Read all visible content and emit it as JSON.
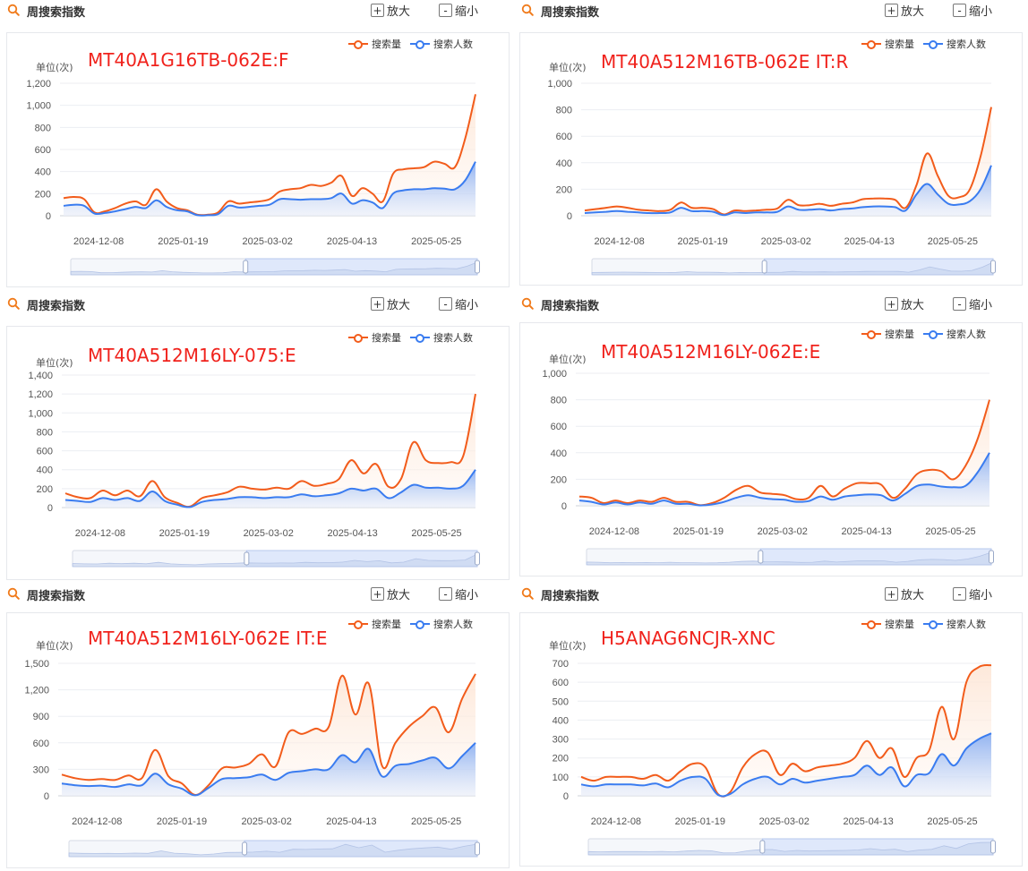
{
  "header": {
    "title": "周搜索指数",
    "zoom_in": "放大",
    "zoom_out": "缩小",
    "zoom_in_sym": "+",
    "zoom_out_sym": "-"
  },
  "legend": {
    "s1": "搜索量",
    "s2": "搜索人数"
  },
  "unit_label": "单位(次)",
  "colors": {
    "search_volume": "#f25c1b",
    "searchers": "#3a7cf0",
    "label": "#f0221c"
  },
  "icons": {
    "search": "magnifier-icon"
  },
  "chart_data": [
    {
      "type": "area",
      "title": "MT40A1G16TB-062E:F",
      "x_ticks": [
        "2024-12-08",
        "2025-01-19",
        "2025-03-02",
        "2025-04-13",
        "2025-05-25"
      ],
      "y_ticks": [
        "0",
        "200",
        "400",
        "600",
        "800",
        "1,000",
        "1,200"
      ],
      "ylim": [
        0,
        1200
      ],
      "series": [
        {
          "name": "搜索量",
          "values": [
            160,
            170,
            150,
            30,
            40,
            70,
            110,
            130,
            100,
            240,
            130,
            70,
            50,
            10,
            10,
            30,
            130,
            110,
            120,
            130,
            150,
            220,
            240,
            250,
            280,
            270,
            300,
            360,
            180,
            250,
            200,
            130,
            380,
            420,
            430,
            440,
            490,
            470,
            440,
            700,
            1100
          ]
        },
        {
          "name": "搜索人数",
          "values": [
            90,
            100,
            90,
            20,
            25,
            40,
            60,
            80,
            70,
            140,
            80,
            50,
            40,
            5,
            5,
            15,
            90,
            75,
            80,
            90,
            100,
            150,
            150,
            145,
            150,
            150,
            160,
            200,
            110,
            140,
            120,
            70,
            200,
            230,
            240,
            240,
            250,
            245,
            240,
            320,
            490
          ]
        }
      ]
    },
    {
      "type": "area",
      "title": "MT40A512M16TB-062E IT:R",
      "x_ticks": [
        "2024-12-08",
        "2025-01-19",
        "2025-03-02",
        "2025-04-13",
        "2025-05-25"
      ],
      "y_ticks": [
        "0",
        "200",
        "400",
        "600",
        "800",
        "1,000"
      ],
      "ylim": [
        0,
        1000
      ],
      "series": [
        {
          "name": "搜索量",
          "values": [
            40,
            50,
            60,
            70,
            60,
            45,
            40,
            35,
            45,
            100,
            60,
            60,
            50,
            10,
            40,
            35,
            40,
            45,
            55,
            120,
            80,
            80,
            90,
            75,
            90,
            100,
            125,
            130,
            130,
            120,
            60,
            230,
            470,
            300,
            150,
            140,
            200,
            450,
            820
          ]
        },
        {
          "name": "搜索人数",
          "values": [
            20,
            25,
            30,
            35,
            30,
            25,
            20,
            20,
            25,
            60,
            35,
            35,
            30,
            5,
            25,
            20,
            25,
            25,
            30,
            70,
            45,
            45,
            50,
            40,
            50,
            55,
            65,
            70,
            70,
            65,
            40,
            160,
            240,
            160,
            90,
            85,
            110,
            200,
            380
          ]
        }
      ]
    },
    {
      "type": "area",
      "title": "MT40A512M16LY-075:E",
      "x_ticks": [
        "2024-12-08",
        "2025-01-19",
        "2025-03-02",
        "2025-04-13",
        "2025-05-25"
      ],
      "y_ticks": [
        "0",
        "200",
        "400",
        "600",
        "800",
        "1,000",
        "1,200",
        "1,400"
      ],
      "ylim": [
        0,
        1400
      ],
      "series": [
        {
          "name": "搜索量",
          "values": [
            150,
            110,
            100,
            180,
            130,
            180,
            120,
            280,
            110,
            50,
            10,
            100,
            130,
            160,
            220,
            200,
            190,
            210,
            200,
            280,
            230,
            250,
            300,
            500,
            360,
            460,
            220,
            300,
            690,
            500,
            470,
            480,
            540,
            1200
          ]
        },
        {
          "name": "搜索人数",
          "values": [
            80,
            70,
            60,
            100,
            80,
            100,
            70,
            170,
            70,
            30,
            5,
            60,
            80,
            90,
            110,
            110,
            100,
            110,
            110,
            140,
            120,
            130,
            150,
            200,
            180,
            200,
            100,
            160,
            240,
            210,
            210,
            200,
            230,
            400
          ]
        }
      ]
    },
    {
      "type": "area",
      "title": "MT40A512M16LY-062E:E",
      "x_ticks": [
        "2024-12-08",
        "2025-01-19",
        "2025-03-02",
        "2025-04-13",
        "2025-05-25"
      ],
      "y_ticks": [
        "0",
        "200",
        "400",
        "600",
        "800",
        "1,000"
      ],
      "ylim": [
        0,
        1000
      ],
      "series": [
        {
          "name": "搜索量",
          "values": [
            70,
            60,
            20,
            40,
            20,
            40,
            30,
            60,
            30,
            30,
            5,
            20,
            60,
            120,
            150,
            100,
            90,
            80,
            50,
            60,
            150,
            70,
            130,
            170,
            170,
            160,
            60,
            130,
            240,
            270,
            260,
            200,
            300,
            500,
            800
          ]
        },
        {
          "name": "搜索人数",
          "values": [
            40,
            30,
            10,
            25,
            10,
            25,
            15,
            40,
            15,
            15,
            3,
            10,
            30,
            60,
            80,
            60,
            50,
            45,
            30,
            35,
            70,
            45,
            70,
            80,
            85,
            80,
            40,
            90,
            150,
            160,
            145,
            140,
            150,
            250,
            400
          ]
        }
      ]
    },
    {
      "type": "area",
      "title": "MT40A512M16LY-062E IT:E",
      "x_ticks": [
        "2024-12-08",
        "2025-01-19",
        "2025-03-02",
        "2025-04-13",
        "2025-05-25"
      ],
      "y_ticks": [
        "0",
        "300",
        "600",
        "900",
        "1,200",
        "1,500"
      ],
      "ylim": [
        0,
        1500
      ],
      "series": [
        {
          "name": "搜索量",
          "values": [
            240,
            200,
            180,
            190,
            180,
            230,
            200,
            520,
            220,
            140,
            10,
            120,
            310,
            320,
            360,
            470,
            330,
            720,
            700,
            760,
            780,
            1360,
            920,
            1270,
            340,
            600,
            780,
            900,
            1000,
            720,
            1100,
            1380
          ]
        },
        {
          "name": "搜索人数",
          "values": [
            140,
            120,
            110,
            115,
            100,
            130,
            120,
            250,
            130,
            80,
            5,
            90,
            190,
            200,
            210,
            240,
            180,
            260,
            280,
            300,
            300,
            460,
            380,
            530,
            220,
            340,
            360,
            400,
            430,
            310,
            450,
            600
          ]
        }
      ]
    },
    {
      "type": "area",
      "title": "H5ANAG6NCJR-XNC",
      "x_ticks": [
        "2024-12-08",
        "2025-01-19",
        "2025-03-02",
        "2025-04-13",
        "2025-05-25"
      ],
      "y_ticks": [
        "0",
        "100",
        "200",
        "300",
        "400",
        "500",
        "600",
        "700"
      ],
      "ylim": [
        0,
        700
      ],
      "series": [
        {
          "name": "搜索量",
          "values": [
            100,
            80,
            100,
            100,
            100,
            90,
            110,
            80,
            130,
            170,
            150,
            10,
            20,
            150,
            220,
            230,
            110,
            170,
            130,
            150,
            160,
            170,
            200,
            290,
            200,
            250,
            100,
            200,
            240,
            470,
            300,
            600,
            680,
            690
          ]
        },
        {
          "name": "搜索人数",
          "values": [
            60,
            50,
            60,
            60,
            60,
            55,
            65,
            45,
            80,
            100,
            90,
            5,
            10,
            60,
            90,
            100,
            60,
            90,
            70,
            80,
            90,
            100,
            110,
            160,
            110,
            150,
            50,
            110,
            120,
            220,
            160,
            250,
            300,
            330
          ]
        }
      ]
    }
  ]
}
